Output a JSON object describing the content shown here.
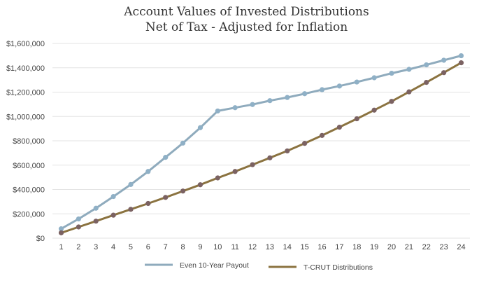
{
  "chart_data": {
    "type": "line",
    "title": "Account Values of Invested Distributions",
    "subtitle": "Net of Tax - Adjusted for Inflation",
    "xlabel": "",
    "ylabel": "",
    "x": [
      1,
      2,
      3,
      4,
      5,
      6,
      7,
      8,
      9,
      10,
      11,
      12,
      13,
      14,
      15,
      16,
      17,
      18,
      19,
      20,
      21,
      22,
      23,
      24
    ],
    "ylim": [
      0,
      1600000
    ],
    "yticks": [
      0,
      200000,
      400000,
      600000,
      800000,
      1000000,
      1200000,
      1400000,
      1600000
    ],
    "ytick_labels": [
      "$0",
      "$200,000",
      "$400,000",
      "$600,000",
      "$800,000",
      "$1,000,000",
      "$1,200,000",
      "$1,400,000",
      "$1,600,000"
    ],
    "grid": true,
    "legend_position": "bottom",
    "series": [
      {
        "name": "Even 10-Year Payout",
        "color": "#8fabbd",
        "marker_color": "#8fb0c6",
        "values": [
          77000,
          158000,
          246000,
          342000,
          441000,
          548000,
          664000,
          781000,
          908000,
          1045000,
          1072000,
          1098000,
          1130000,
          1156000,
          1187000,
          1220000,
          1250000,
          1283000,
          1318000,
          1355000,
          1387000,
          1424000,
          1462000,
          1499000
        ]
      },
      {
        "name": "T-CRUT Distributions",
        "color": "#8b7340",
        "marker_color": "#7b6262",
        "values": [
          44000,
          92000,
          140000,
          189000,
          237000,
          285000,
          335000,
          387000,
          439000,
          495000,
          548000,
          604000,
          660000,
          717000,
          779000,
          844000,
          912000,
          981000,
          1052000,
          1124000,
          1202000,
          1280000,
          1360000,
          1441000
        ]
      }
    ]
  }
}
